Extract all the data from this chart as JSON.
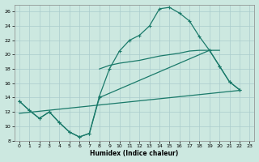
{
  "xlabel": "Humidex (Indice chaleur)",
  "bg_color": "#cce8e0",
  "grid_color": "#aacccc",
  "line_color": "#1a7a6a",
  "xlim": [
    -0.5,
    23.5
  ],
  "ylim": [
    8,
    27
  ],
  "xticks": [
    0,
    1,
    2,
    3,
    4,
    5,
    6,
    7,
    8,
    9,
    10,
    11,
    12,
    13,
    14,
    15,
    16,
    17,
    18,
    19,
    20,
    21,
    22,
    23
  ],
  "yticks": [
    8,
    10,
    12,
    14,
    16,
    18,
    20,
    22,
    24,
    26
  ],
  "curve1_x": [
    0,
    1,
    2,
    3,
    4,
    5,
    6,
    7,
    8,
    9,
    10,
    11,
    12,
    13,
    14,
    15,
    16,
    17,
    18,
    19,
    20,
    21,
    22
  ],
  "curve1_y": [
    13.5,
    12.2,
    11.1,
    12.0,
    10.5,
    9.2,
    8.5,
    9.0,
    14.2,
    18.0,
    20.5,
    22.0,
    22.7,
    24.0,
    26.4,
    26.6,
    25.8,
    24.7,
    22.5,
    20.6,
    18.4,
    16.2,
    15.1
  ],
  "curve2_x": [
    0,
    1,
    2,
    3,
    4,
    5,
    6,
    7,
    8,
    19,
    20,
    21,
    22
  ],
  "curve2_y": [
    13.5,
    12.2,
    11.1,
    12.0,
    10.5,
    9.2,
    8.5,
    9.0,
    14.0,
    20.6,
    18.4,
    16.2,
    15.1
  ],
  "curve3_x": [
    0,
    22
  ],
  "curve3_y": [
    11.8,
    15.0
  ],
  "curve4_x": [
    8,
    9,
    10,
    11,
    12,
    13,
    14,
    15,
    16,
    17,
    18,
    19,
    20
  ],
  "curve4_y": [
    18.0,
    18.5,
    18.8,
    19.0,
    19.2,
    19.5,
    19.8,
    20.0,
    20.2,
    20.5,
    20.6,
    20.6,
    20.6
  ]
}
